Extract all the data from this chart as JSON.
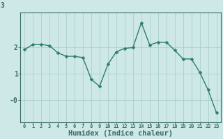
{
  "x": [
    0,
    1,
    2,
    3,
    4,
    5,
    6,
    7,
    8,
    9,
    10,
    11,
    12,
    13,
    14,
    15,
    16,
    17,
    18,
    19,
    20,
    21,
    22,
    23
  ],
  "y": [
    1.9,
    2.1,
    2.1,
    2.05,
    1.78,
    1.65,
    1.65,
    1.6,
    0.78,
    0.52,
    1.35,
    1.82,
    1.95,
    1.98,
    2.92,
    2.08,
    2.18,
    2.18,
    1.88,
    1.55,
    1.55,
    1.05,
    0.38,
    -0.48
  ],
  "line_color": "#2d7d6e",
  "marker": "D",
  "marker_size": 2.5,
  "line_width": 1.0,
  "bg_color": "#cde8e7",
  "grid_color": "#aacfcd",
  "tick_color": "#3a6b65",
  "xlabel": "Humidex (Indice chaleur)",
  "xlabel_fontsize": 7.5,
  "ylim": [
    -0.85,
    3.3
  ],
  "xlim": [
    -0.5,
    23.5
  ],
  "xticks": [
    0,
    1,
    2,
    3,
    4,
    5,
    6,
    7,
    8,
    9,
    10,
    11,
    12,
    13,
    14,
    15,
    16,
    17,
    18,
    19,
    20,
    21,
    22,
    23
  ],
  "yticks": [
    0,
    1,
    2
  ],
  "ytick_labels": [
    "-0",
    "1",
    "2"
  ],
  "top_label": "3"
}
